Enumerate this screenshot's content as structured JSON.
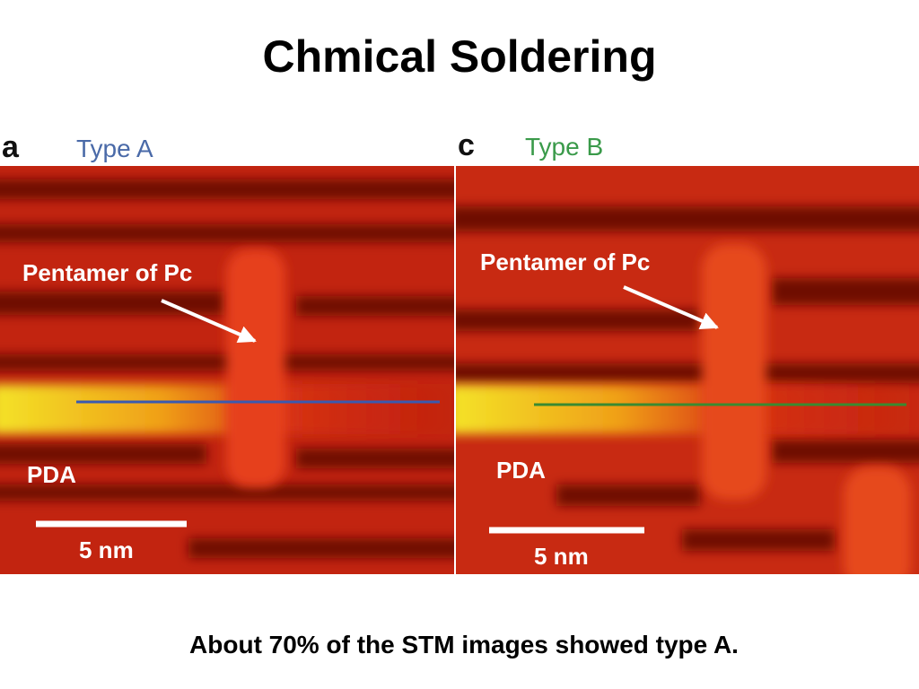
{
  "title": "Chmical Soldering",
  "panels": [
    {
      "letter": "a",
      "type_label": "Type A",
      "annotation": "Pentamer of Pc",
      "region_label": "PDA",
      "scale_label": "5 nm"
    },
    {
      "letter": "c",
      "type_label": "Type B",
      "annotation": "Pentamer of Pc",
      "region_label": "PDA",
      "scale_label": "5 nm"
    }
  ],
  "caption": "About 70% of the STM images showed type A."
}
